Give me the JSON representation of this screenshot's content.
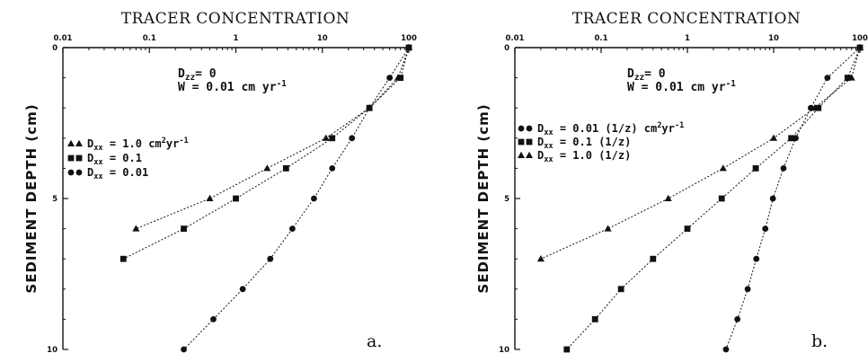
{
  "chart_data": [
    {
      "type": "line",
      "title": "TRACER CONCENTRATION",
      "ylabel": "SEDIMENT DEPTH (cm)",
      "panel_label": "a.",
      "xscale": "log",
      "xlim": [
        0.01,
        100
      ],
      "x_ticks": [
        "0.01",
        "0.1",
        "1",
        "10",
        "100"
      ],
      "ylim": [
        0,
        10
      ],
      "y_inverted": true,
      "y_ticks": [
        "0",
        "5",
        "10"
      ],
      "grid": false,
      "legend_position": "left",
      "annotation_lines": [
        "D<sub>zz</sub>= 0",
        "W = 0.01 cm yr<sup>-1</sup>"
      ],
      "series": [
        {
          "name": "D<sub>xx</sub> = 1.0 cm<sup>2</sup>yr<sup>-1</sup>",
          "marker": "triangle",
          "points": [
            [
              100,
              0
            ],
            [
              75,
              1
            ],
            [
              35,
              2
            ],
            [
              11,
              3
            ],
            [
              2.3,
              4
            ],
            [
              0.5,
              5
            ],
            [
              0.07,
              6
            ]
          ]
        },
        {
          "name": "D<sub>xx</sub> = 0.1",
          "marker": "square",
          "points": [
            [
              100,
              0
            ],
            [
              80,
              1
            ],
            [
              35,
              2
            ],
            [
              13,
              3
            ],
            [
              3.8,
              4
            ],
            [
              1,
              5
            ],
            [
              0.25,
              6
            ],
            [
              0.05,
              7
            ]
          ]
        },
        {
          "name": "D<sub>xx</sub> = 0.01",
          "marker": "circle",
          "points": [
            [
              100,
              0
            ],
            [
              60,
              1
            ],
            [
              35,
              2
            ],
            [
              22,
              3
            ],
            [
              13,
              4
            ],
            [
              8,
              5
            ],
            [
              4.5,
              6
            ],
            [
              2.5,
              7
            ],
            [
              1.2,
              8
            ],
            [
              0.55,
              9
            ],
            [
              0.25,
              10
            ]
          ]
        }
      ]
    },
    {
      "type": "line",
      "title": "TRACER CONCENTRATION",
      "ylabel": "SEDIMENT DEPTH (cm)",
      "panel_label": "b.",
      "xscale": "log",
      "xlim": [
        0.01,
        100
      ],
      "x_ticks": [
        "0.01",
        "0.1",
        "1",
        "10",
        "100"
      ],
      "ylim": [
        0,
        10
      ],
      "y_inverted": true,
      "y_ticks": [
        "0",
        "5",
        "10"
      ],
      "grid": false,
      "legend_position": "left",
      "annotation_lines": [
        "D<sub>zz</sub>= 0",
        "W = 0.01 cm yr<sup>-1</sup>"
      ],
      "series": [
        {
          "name": "D<sub>xx</sub> = 0.01 (1/z) cm<sup>2</sup>yr<sup>-1</sup>",
          "marker": "circle",
          "points": [
            [
              100,
              0
            ],
            [
              42,
              1
            ],
            [
              27,
              2
            ],
            [
              18,
              3
            ],
            [
              13,
              4
            ],
            [
              9.8,
              5
            ],
            [
              8,
              6
            ],
            [
              6.3,
              7
            ],
            [
              5,
              8
            ],
            [
              3.8,
              9
            ],
            [
              2.8,
              10
            ]
          ]
        },
        {
          "name": "D<sub>xx</sub> = 0.1 (1/z)",
          "marker": "square",
          "points": [
            [
              100,
              0
            ],
            [
              72,
              1
            ],
            [
              33,
              2
            ],
            [
              16,
              3
            ],
            [
              6.2,
              4
            ],
            [
              2.5,
              5
            ],
            [
              1,
              6
            ],
            [
              0.4,
              7
            ],
            [
              0.17,
              8
            ],
            [
              0.085,
              9
            ],
            [
              0.04,
              10
            ]
          ]
        },
        {
          "name": "D<sub>xx</sub> = 1.0 (1/z)",
          "marker": "triangle",
          "points": [
            [
              100,
              0
            ],
            [
              80,
              1
            ],
            [
              30,
              2
            ],
            [
              10,
              3
            ],
            [
              2.6,
              4
            ],
            [
              0.6,
              5
            ],
            [
              0.12,
              6
            ],
            [
              0.02,
              7
            ]
          ]
        }
      ]
    }
  ]
}
